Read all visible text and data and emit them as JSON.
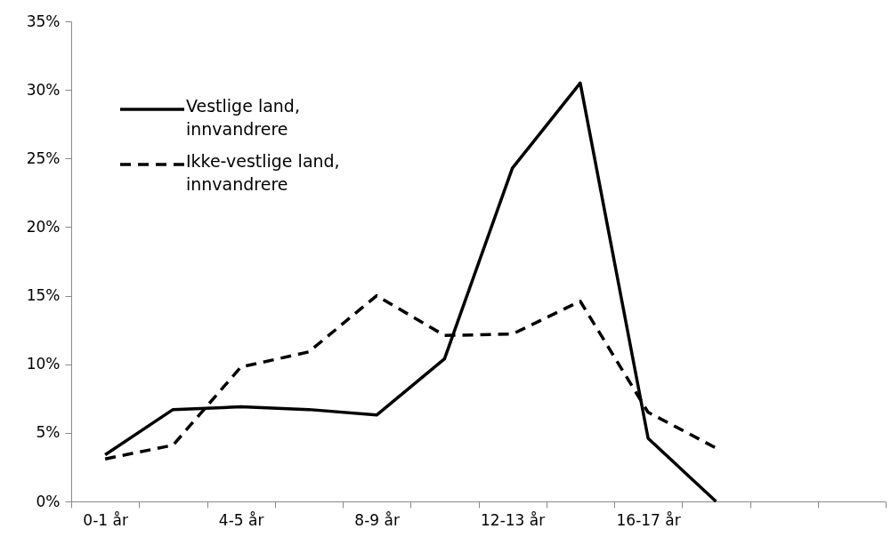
{
  "chart_data": {
    "type": "line",
    "categories": [
      "0-1 år",
      null,
      "4-5 år",
      null,
      "8-9 år",
      null,
      "12-13 år",
      null,
      "16-17 år",
      null,
      null,
      null
    ],
    "series": [
      {
        "name": "Vestlige land, innvandrere",
        "color": "#000000",
        "line_style": "solid",
        "values": [
          3.4,
          6.7,
          6.9,
          6.7,
          6.3,
          10.4,
          24.3,
          30.5,
          4.6,
          0,
          null,
          null
        ]
      },
      {
        "name": "Ikke-vestlige land, innvandrere",
        "color": "#000000",
        "line_style": "dashed",
        "values": [
          3.1,
          4.1,
          9.8,
          10.9,
          15.0,
          12.1,
          12.2,
          14.6,
          6.5,
          3.9,
          null,
          null
        ]
      }
    ],
    "ylim": [
      0,
      35
    ],
    "yticks": [
      {
        "value": 0,
        "label": "0%"
      },
      {
        "value": 5,
        "label": "5%"
      },
      {
        "value": 10,
        "label": "10%"
      },
      {
        "value": 15,
        "label": "15%"
      },
      {
        "value": 20,
        "label": "20%"
      },
      {
        "value": 25,
        "label": "25%"
      },
      {
        "value": 30,
        "label": "30%"
      },
      {
        "value": 35,
        "label": "35%"
      }
    ],
    "grid": false,
    "legend": "top left",
    "marker": "none"
  }
}
